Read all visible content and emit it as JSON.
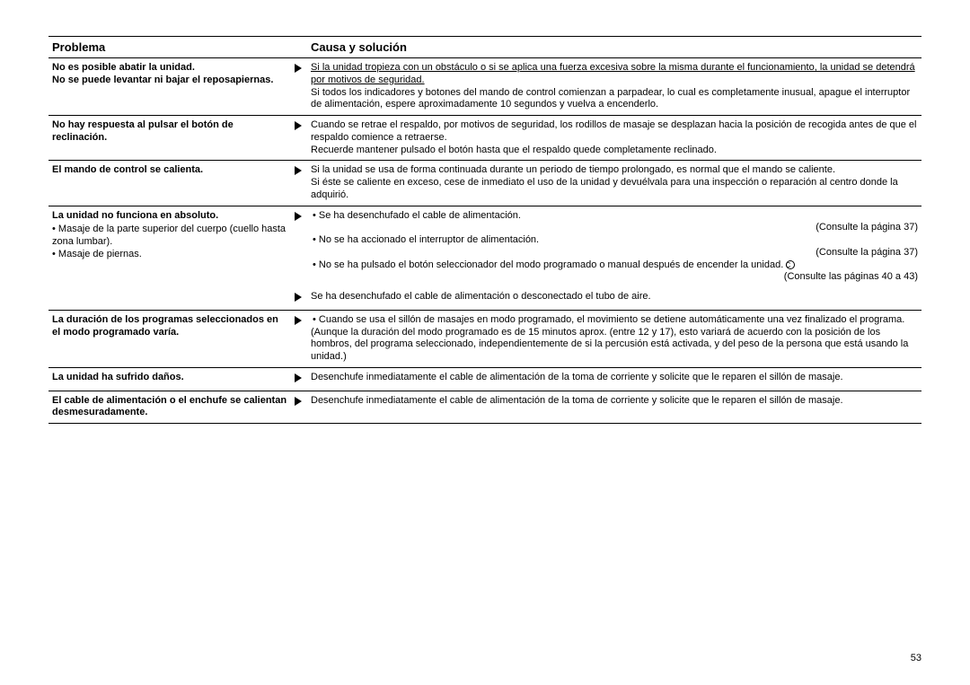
{
  "headers": {
    "problem": "Problema",
    "cause": "Causa y solución"
  },
  "page_number": "53",
  "rows": [
    {
      "problem_bold": "No es posible abatir la unidad.\nNo se puede levantar ni bajar el reposapiernas.",
      "problem_sub": "",
      "blocks": [
        {
          "arrow": true,
          "paras": [
            {
              "underline": "Si la unidad tropieza con un obstáculo o si se aplica una fuerza excesiva sobre la misma durante el funcionamiento, la unidad se detendrá por motivos de seguridad."
            },
            {
              "text": "Si todos los indicadores y botones del mando de control comienzan a parpadear, lo cual es completamente inusual, apague el interruptor de alimentación, espere aproximadamente 10 segundos y vuelva a encenderlo."
            }
          ]
        }
      ]
    },
    {
      "problem_bold": "No hay respuesta al pulsar el botón de reclinación.",
      "problem_sub": "",
      "blocks": [
        {
          "arrow": true,
          "paras": [
            {
              "text": "Cuando se retrae el respaldo, por motivos de seguridad, los rodillos de masaje se desplazan hacia la posición de recogida antes de que el respaldo comience a retraerse."
            },
            {
              "text": "Recuerde mantener pulsado el botón hasta que el respaldo quede completamente reclinado."
            }
          ]
        }
      ]
    },
    {
      "problem_bold": "El mando de control se calienta.",
      "problem_sub": "",
      "blocks": [
        {
          "arrow": true,
          "paras": [
            {
              "text": "Si la unidad se usa de forma continuada durante un periodo de tiempo prolongado, es normal que el mando se caliente."
            },
            {
              "text": "Si éste se caliente en exceso, cese de inmediato el uso de la unidad y devuélvala para una inspección o reparación al centro donde la adquirió."
            }
          ]
        }
      ]
    },
    {
      "problem_bold": "La unidad no funciona en absoluto.",
      "problem_sub": "• Masaje de la parte superior del cuerpo (cuello hasta zona lumbar).\n• Masaje de piernas.",
      "blocks": [
        {
          "arrow": true,
          "paras": [
            {
              "bullets": [
                {
                  "t": "Se ha desenchufado el cable de alimentación.",
                  "ref": "(Consulte la página 37)"
                },
                {
                  "t": "No se ha accionado el interruptor de alimentación.",
                  "ref": "(Consulte la página 37)"
                },
                {
                  "t": "No se ha pulsado el botón seleccionador del modo programado o manual después de encender la unidad.",
                  "ref": "(Consulte las páginas 40 a 43)",
                  "circ": "C"
                }
              ]
            }
          ]
        },
        {
          "arrow": true,
          "paras": [
            {
              "text": "Se ha desenchufado el cable de alimentación o desconectado el tubo de aire."
            }
          ]
        }
      ]
    },
    {
      "problem_bold": "La duración de los programas seleccionados en el modo programado varía.",
      "problem_sub": "",
      "blocks": [
        {
          "arrow": true,
          "paras": [
            {
              "bullets": [
                {
                  "t": "Cuando se usa el sillón de masajes en modo programado, el movimiento se detiene automáticamente una vez finalizado el programa."
                }
              ]
            },
            {
              "text": "(Aunque la duración del modo programado es de 15 minutos aprox. (entre 12 y 17), esto variará de acuerdo con la posición de los hombros, del programa seleccionado, independientemente de si la percusión está activada, y del peso de la persona que está usando la unidad.)"
            }
          ]
        }
      ]
    },
    {
      "problem_bold": "La unidad ha sufrido daños.",
      "problem_sub": "",
      "blocks": [
        {
          "arrow": true,
          "paras": [
            {
              "text": "Desenchufe inmediatamente el cable de alimentación de la toma de corriente y solicite que le reparen el sillón de masaje."
            }
          ]
        }
      ]
    },
    {
      "problem_bold": "El cable de alimentación o el enchufe se calientan desmesuradamente.",
      "problem_sub": "",
      "blocks": [
        {
          "arrow": true,
          "paras": [
            {
              "text": "Desenchufe inmediatamente el cable de alimentación de la toma de corriente y solicite que le reparen el sillón de masaje."
            }
          ]
        }
      ]
    }
  ]
}
